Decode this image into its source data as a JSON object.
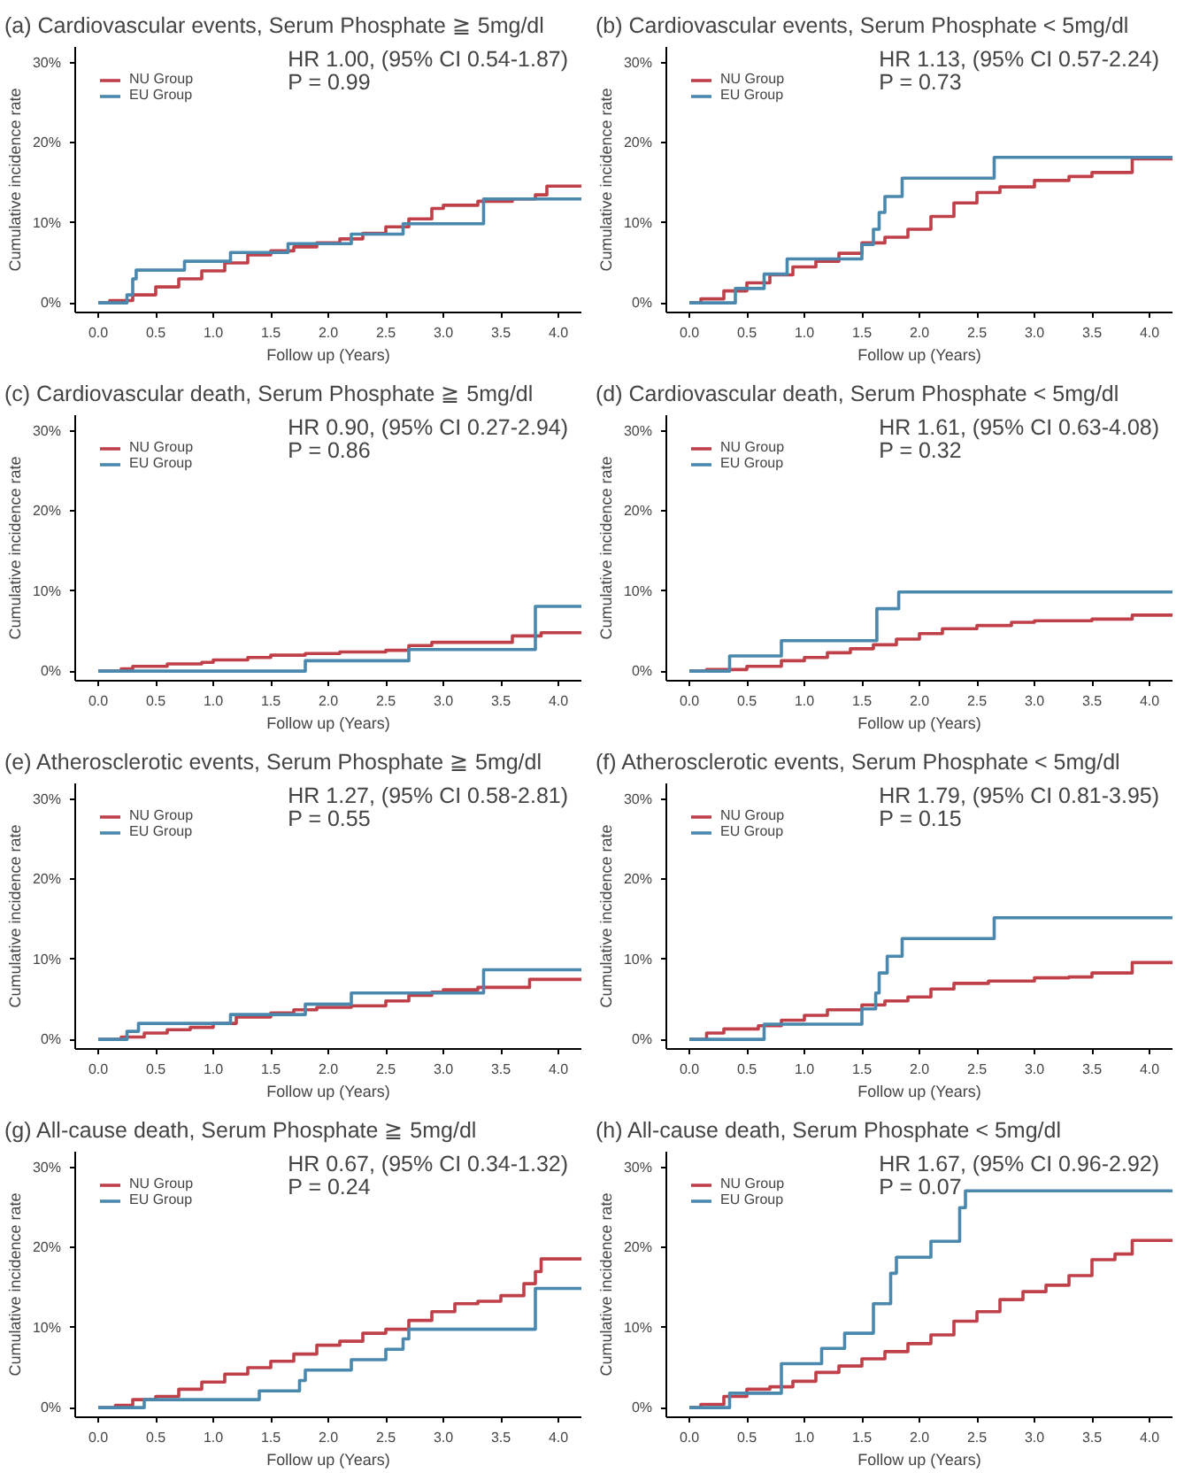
{
  "chart_data": [
    {
      "type": "step",
      "title": "(a) Cardiovascular events, Serum Phosphate ≧ 5mg/dl",
      "xlabel": "Follow up (Years)",
      "ylabel": "Cumulative incidence rate",
      "annotations": [
        "HR 1.00, (95% CI 0.54-1.87)",
        "P = 0.99"
      ],
      "legend": "top left",
      "grid": false,
      "xlim": [
        -0.2,
        4.2
      ],
      "ylim": [
        -1.2,
        32
      ],
      "xticks": [
        {
          "value": 0,
          "label": "0.0"
        },
        0.5,
        {
          "value": 1,
          "label": "1.0"
        },
        1.5,
        {
          "value": 2,
          "label": "2.0"
        },
        2.5,
        {
          "value": 3,
          "label": "3.0"
        },
        3.5,
        {
          "value": 4,
          "label": "4.0"
        }
      ],
      "yticks": [
        {
          "value": 0,
          "label": "0%"
        },
        {
          "value": 10,
          "label": "10%"
        },
        {
          "value": 20,
          "label": "20%"
        },
        {
          "value": 30,
          "label": "30%"
        }
      ],
      "series": [
        {
          "name": "NU Group",
          "color": "#c0404a",
          "x": [
            0,
            0.1,
            0.3,
            0.5,
            0.7,
            0.9,
            1.1,
            1.3,
            1.5,
            1.7,
            1.9,
            2.1,
            2.3,
            2.5,
            2.7,
            2.9,
            3.0,
            3.3,
            3.6,
            3.8,
            3.9,
            4.2
          ],
          "values": [
            0,
            0.3,
            1,
            2,
            3,
            4,
            5,
            6,
            6.5,
            7,
            7.5,
            8,
            8.7,
            9.5,
            10.5,
            11.8,
            12.2,
            12.7,
            13,
            13.5,
            14.6,
            14.6
          ]
        },
        {
          "name": "EU Group",
          "color": "#4a88ae",
          "x": [
            0,
            0.25,
            0.3,
            0.33,
            0.75,
            1.15,
            1.65,
            2.2,
            2.65,
            3.35,
            4.2
          ],
          "values": [
            0,
            1,
            3,
            4.1,
            5.2,
            6.3,
            7.4,
            8.6,
            9.9,
            13,
            13
          ]
        }
      ]
    },
    {
      "type": "step",
      "title": "(b) Cardiovascular events, Serum Phosphate < 5mg/dl",
      "xlabel": "Follow up (Years)",
      "ylabel": "Cumulative incidence rate",
      "annotations": [
        "HR 1.13, (95% CI 0.57-2.24)",
        "P = 0.73"
      ],
      "legend": "top left",
      "grid": false,
      "xlim": [
        -0.2,
        4.2
      ],
      "ylim": [
        -1.2,
        32
      ],
      "xticks": [
        {
          "value": 0,
          "label": "0.0"
        },
        0.5,
        {
          "value": 1,
          "label": "1.0"
        },
        1.5,
        {
          "value": 2,
          "label": "2.0"
        },
        2.5,
        {
          "value": 3,
          "label": "3.0"
        },
        3.5,
        {
          "value": 4,
          "label": "4.0"
        }
      ],
      "yticks": [
        {
          "value": 0,
          "label": "0%"
        },
        {
          "value": 10,
          "label": "10%"
        },
        {
          "value": 20,
          "label": "20%"
        },
        {
          "value": 30,
          "label": "30%"
        }
      ],
      "series": [
        {
          "name": "NU Group",
          "color": "#c0404a",
          "x": [
            0,
            0.1,
            0.3,
            0.5,
            0.7,
            0.9,
            1.1,
            1.3,
            1.5,
            1.7,
            1.9,
            2.1,
            2.3,
            2.5,
            2.7,
            3.0,
            3.3,
            3.5,
            3.85,
            4.2
          ],
          "values": [
            0,
            0.5,
            1.5,
            2.5,
            3.5,
            4.5,
            5.2,
            6.2,
            7.5,
            8.2,
            9.2,
            10.8,
            12.5,
            13.8,
            14.5,
            15.3,
            15.8,
            16.3,
            18,
            18
          ]
        },
        {
          "name": "EU Group",
          "color": "#4a88ae",
          "x": [
            0,
            0.4,
            0.65,
            0.85,
            1.5,
            1.6,
            1.65,
            1.7,
            1.85,
            2.65,
            4.2
          ],
          "values": [
            0,
            1.8,
            3.6,
            5.5,
            7.3,
            9.2,
            11.3,
            13.3,
            15.6,
            18.2,
            18.2
          ]
        }
      ]
    },
    {
      "type": "step",
      "title": "(c) Cardiovascular death, Serum Phosphate ≧ 5mg/dl",
      "xlabel": "Follow up (Years)",
      "ylabel": "Cumulative incidence rate",
      "annotations": [
        "HR 0.90, (95% CI 0.27-2.94)",
        "P = 0.86"
      ],
      "legend": "top left",
      "grid": false,
      "xlim": [
        -0.2,
        4.2
      ],
      "ylim": [
        -1.2,
        32
      ],
      "xticks": [
        {
          "value": 0,
          "label": "0.0"
        },
        0.5,
        {
          "value": 1,
          "label": "1.0"
        },
        1.5,
        {
          "value": 2,
          "label": "2.0"
        },
        2.5,
        {
          "value": 3,
          "label": "3.0"
        },
        3.5,
        {
          "value": 4,
          "label": "4.0"
        }
      ],
      "yticks": [
        {
          "value": 0,
          "label": "0%"
        },
        {
          "value": 10,
          "label": "10%"
        },
        {
          "value": 20,
          "label": "20%"
        },
        {
          "value": 30,
          "label": "30%"
        }
      ],
      "series": [
        {
          "name": "NU Group",
          "color": "#c0404a",
          "x": [
            0,
            0.2,
            0.3,
            0.6,
            0.9,
            1.0,
            1.3,
            1.5,
            1.8,
            2.1,
            2.5,
            2.7,
            2.9,
            3.6,
            3.85,
            4.2
          ],
          "values": [
            0,
            0.3,
            0.6,
            0.9,
            1.1,
            1.4,
            1.7,
            2.0,
            2.2,
            2.4,
            2.6,
            3.2,
            3.6,
            4.4,
            4.8,
            4.8
          ]
        },
        {
          "name": "EU Group",
          "color": "#4a88ae",
          "x": [
            0,
            1.8,
            2.7,
            3.8,
            4.2
          ],
          "values": [
            0,
            1.3,
            2.7,
            8.1,
            8.1
          ]
        }
      ]
    },
    {
      "type": "step",
      "title": "(d) Cardiovascular death, Serum Phosphate < 5mg/dl",
      "xlabel": "Follow up (Years)",
      "ylabel": "Cumulative incidence rate",
      "annotations": [
        "HR 1.61, (95% CI 0.63-4.08)",
        "P = 0.32"
      ],
      "legend": "top left",
      "grid": false,
      "xlim": [
        -0.2,
        4.2
      ],
      "ylim": [
        -1.2,
        32
      ],
      "xticks": [
        {
          "value": 0,
          "label": "0.0"
        },
        0.5,
        {
          "value": 1,
          "label": "1.0"
        },
        1.5,
        {
          "value": 2,
          "label": "2.0"
        },
        2.5,
        {
          "value": 3,
          "label": "3.0"
        },
        3.5,
        {
          "value": 4,
          "label": "4.0"
        }
      ],
      "yticks": [
        {
          "value": 0,
          "label": "0%"
        },
        {
          "value": 10,
          "label": "10%"
        },
        {
          "value": 20,
          "label": "20%"
        },
        {
          "value": 30,
          "label": "30%"
        }
      ],
      "series": [
        {
          "name": "NU Group",
          "color": "#c0404a",
          "x": [
            0,
            0.15,
            0.5,
            0.8,
            1.0,
            1.2,
            1.4,
            1.6,
            1.8,
            2.0,
            2.2,
            2.5,
            2.8,
            3.0,
            3.5,
            3.85,
            4.2
          ],
          "values": [
            0,
            0.2,
            0.6,
            1.3,
            1.7,
            2.3,
            2.8,
            3.3,
            4,
            4.7,
            5.3,
            5.7,
            6.1,
            6.3,
            6.5,
            7.0,
            7.0
          ]
        },
        {
          "name": "EU Group",
          "color": "#4a88ae",
          "x": [
            0,
            0.35,
            0.8,
            1.63,
            1.82,
            4.2
          ],
          "values": [
            0,
            1.9,
            3.8,
            7.8,
            9.9,
            9.9
          ]
        }
      ]
    },
    {
      "type": "step",
      "title": "(e) Atherosclerotic events, Serum Phosphate ≧ 5mg/dl",
      "xlabel": "Follow up (Years)",
      "ylabel": "Cumulative incidence rate",
      "annotations": [
        "HR 1.27, (95% CI 0.58-2.81)",
        "P = 0.55"
      ],
      "legend": "top left",
      "grid": false,
      "xlim": [
        -0.2,
        4.2
      ],
      "ylim": [
        -1.2,
        32
      ],
      "xticks": [
        {
          "value": 0,
          "label": "0.0"
        },
        0.5,
        {
          "value": 1,
          "label": "1.0"
        },
        1.5,
        {
          "value": 2,
          "label": "2.0"
        },
        2.5,
        {
          "value": 3,
          "label": "3.0"
        },
        3.5,
        {
          "value": 4,
          "label": "4.0"
        }
      ],
      "yticks": [
        {
          "value": 0,
          "label": "0%"
        },
        {
          "value": 10,
          "label": "10%"
        },
        {
          "value": 20,
          "label": "20%"
        },
        {
          "value": 30,
          "label": "30%"
        }
      ],
      "series": [
        {
          "name": "NU Group",
          "color": "#c0404a",
          "x": [
            0,
            0.2,
            0.4,
            0.6,
            0.8,
            1.0,
            1.2,
            1.5,
            1.7,
            1.9,
            2.2,
            2.5,
            2.7,
            2.9,
            3.0,
            3.3,
            3.75,
            4.2
          ],
          "values": [
            0,
            0.3,
            0.8,
            1.2,
            1.5,
            2.0,
            2.8,
            3.3,
            3.7,
            4.0,
            4.2,
            4.8,
            5.5,
            5.9,
            6.2,
            6.5,
            7.5,
            7.5
          ]
        },
        {
          "name": "EU Group",
          "color": "#4a88ae",
          "x": [
            0,
            0.25,
            0.35,
            1.15,
            1.8,
            2.2,
            3.35,
            4.2
          ],
          "values": [
            0,
            1,
            2.0,
            3.1,
            4.4,
            5.8,
            8.7,
            8.7
          ]
        }
      ]
    },
    {
      "type": "step",
      "title": "(f) Atherosclerotic events, Serum Phosphate < 5mg/dl",
      "xlabel": "Follow up (Years)",
      "ylabel": "Cumulative incidence rate",
      "annotations": [
        "HR 1.79, (95% CI 0.81-3.95)",
        "P = 0.15"
      ],
      "legend": "top left",
      "grid": false,
      "xlim": [
        -0.2,
        4.2
      ],
      "ylim": [
        -1.2,
        32
      ],
      "xticks": [
        {
          "value": 0,
          "label": "0.0"
        },
        0.5,
        {
          "value": 1,
          "label": "1.0"
        },
        1.5,
        {
          "value": 2,
          "label": "2.0"
        },
        2.5,
        {
          "value": 3,
          "label": "3.0"
        },
        3.5,
        {
          "value": 4,
          "label": "4.0"
        }
      ],
      "yticks": [
        {
          "value": 0,
          "label": "0%"
        },
        {
          "value": 10,
          "label": "10%"
        },
        {
          "value": 20,
          "label": "20%"
        },
        {
          "value": 30,
          "label": "30%"
        }
      ],
      "series": [
        {
          "name": "NU Group",
          "color": "#c0404a",
          "x": [
            0,
            0.15,
            0.3,
            0.6,
            0.8,
            1.0,
            1.2,
            1.5,
            1.7,
            1.9,
            2.1,
            2.3,
            2.6,
            3.0,
            3.3,
            3.5,
            3.85,
            4.2
          ],
          "values": [
            0,
            0.8,
            1.3,
            1.7,
            2.4,
            3.0,
            3.7,
            4.3,
            4.8,
            5.3,
            6.3,
            7.0,
            7.3,
            7.7,
            7.8,
            8.3,
            9.6,
            9.6
          ]
        },
        {
          "name": "EU Group",
          "color": "#4a88ae",
          "x": [
            0,
            0.65,
            1.5,
            1.62,
            1.65,
            1.72,
            1.85,
            2.65,
            4.2
          ],
          "values": [
            0,
            1.9,
            3.8,
            5.8,
            8.3,
            10.4,
            12.6,
            15.2,
            15.2
          ]
        }
      ]
    },
    {
      "type": "step",
      "title": "(g) All-cause death, Serum Phosphate ≧ 5mg/dl",
      "xlabel": "Follow up (Years)",
      "ylabel": "Cumulative incidence rate",
      "annotations": [
        "HR 0.67, (95% CI 0.34-1.32)",
        "P = 0.24"
      ],
      "legend": "top left",
      "grid": false,
      "xlim": [
        -0.2,
        4.2
      ],
      "ylim": [
        -1.2,
        32
      ],
      "xticks": [
        {
          "value": 0,
          "label": "0.0"
        },
        0.5,
        {
          "value": 1,
          "label": "1.0"
        },
        1.5,
        {
          "value": 2,
          "label": "2.0"
        },
        2.5,
        {
          "value": 3,
          "label": "3.0"
        },
        3.5,
        {
          "value": 4,
          "label": "4.0"
        }
      ],
      "yticks": [
        {
          "value": 0,
          "label": "0%"
        },
        {
          "value": 10,
          "label": "10%"
        },
        {
          "value": 20,
          "label": "20%"
        },
        {
          "value": 30,
          "label": "30%"
        }
      ],
      "series": [
        {
          "name": "NU Group",
          "color": "#c0404a",
          "x": [
            0,
            0.15,
            0.3,
            0.5,
            0.7,
            0.9,
            1.1,
            1.3,
            1.5,
            1.7,
            1.9,
            2.1,
            2.3,
            2.5,
            2.7,
            2.9,
            3.1,
            3.3,
            3.5,
            3.7,
            3.8,
            3.85,
            4.2
          ],
          "values": [
            0,
            0.3,
            1.0,
            1.4,
            2.3,
            3.2,
            4.2,
            5.0,
            5.8,
            6.7,
            7.8,
            8.3,
            9.3,
            9.8,
            10.9,
            12.0,
            13.0,
            13.3,
            14.0,
            15.5,
            17.0,
            18.6,
            18.6
          ]
        },
        {
          "name": "EU Group",
          "color": "#4a88ae",
          "x": [
            0,
            0.4,
            1.4,
            1.75,
            1.8,
            2.2,
            2.5,
            2.65,
            2.7,
            3.8,
            4.2
          ],
          "values": [
            0,
            1.0,
            2.1,
            3.4,
            4.7,
            6.0,
            7.3,
            8.6,
            9.8,
            14.9,
            14.9
          ]
        }
      ]
    },
    {
      "type": "step",
      "title": "(h) All-cause death, Serum Phosphate < 5mg/dl",
      "xlabel": "Follow up (Years)",
      "ylabel": "Cumulative incidence rate",
      "annotations": [
        "HR 1.67, (95% CI 0.96-2.92)",
        "P = 0.07"
      ],
      "legend": "top left",
      "grid": false,
      "xlim": [
        -0.2,
        4.2
      ],
      "ylim": [
        -1.2,
        32
      ],
      "xticks": [
        {
          "value": 0,
          "label": "0.0"
        },
        0.5,
        {
          "value": 1,
          "label": "1.0"
        },
        1.5,
        {
          "value": 2,
          "label": "2.0"
        },
        2.5,
        {
          "value": 3,
          "label": "3.0"
        },
        3.5,
        {
          "value": 4,
          "label": "4.0"
        }
      ],
      "yticks": [
        {
          "value": 0,
          "label": "0%"
        },
        {
          "value": 10,
          "label": "10%"
        },
        {
          "value": 20,
          "label": "20%"
        },
        {
          "value": 30,
          "label": "30%"
        }
      ],
      "series": [
        {
          "name": "NU Group",
          "color": "#c0404a",
          "x": [
            0,
            0.1,
            0.3,
            0.5,
            0.7,
            0.9,
            1.1,
            1.3,
            1.5,
            1.7,
            1.9,
            2.1,
            2.3,
            2.5,
            2.7,
            2.9,
            3.1,
            3.3,
            3.5,
            3.7,
            3.85,
            4.2
          ],
          "values": [
            0,
            0.4,
            1.4,
            2.3,
            2.6,
            3.3,
            4.4,
            5.2,
            6.1,
            7.0,
            8.0,
            9.1,
            10.8,
            12.0,
            13.5,
            14.5,
            15.3,
            16.5,
            18.5,
            19.2,
            20.9,
            20.9
          ]
        },
        {
          "name": "EU Group",
          "color": "#4a88ae",
          "x": [
            0,
            0.35,
            0.8,
            1.15,
            1.35,
            1.6,
            1.75,
            1.8,
            2.1,
            2.35,
            2.4,
            4.2
          ],
          "values": [
            0,
            1.8,
            5.5,
            7.4,
            9.3,
            13.0,
            16.8,
            18.8,
            20.8,
            25,
            27.1,
            27.1
          ]
        }
      ]
    }
  ]
}
